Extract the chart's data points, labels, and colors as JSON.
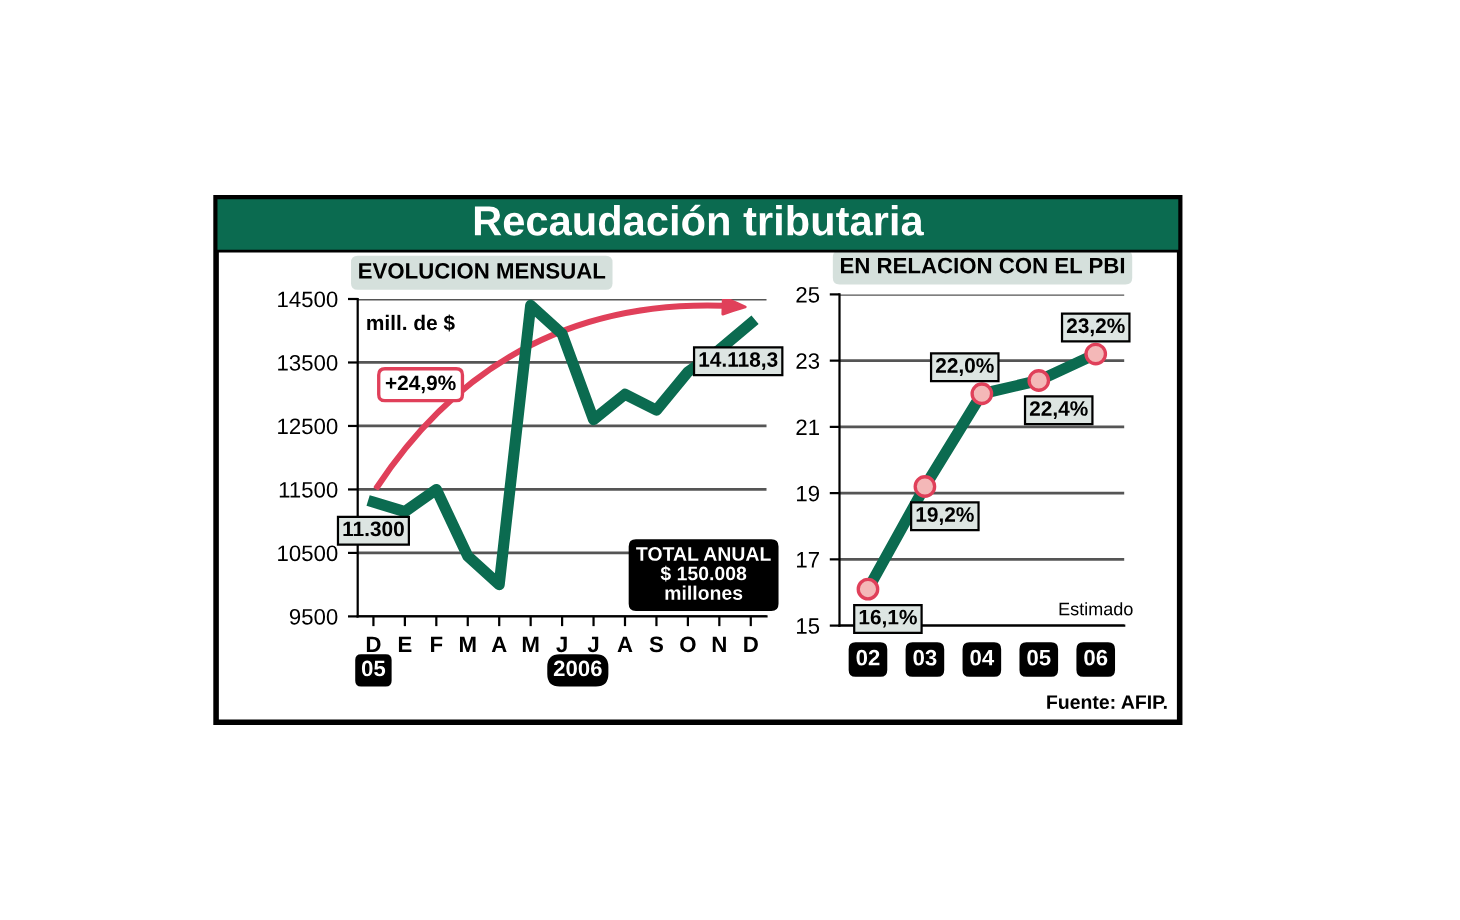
{
  "chart_data": [
    {
      "type": "line",
      "title": "Recaudación tributaria",
      "subtitle": "EVOLUCION MENSUAL",
      "ylabel": "mill. de $",
      "categories": [
        "D",
        "E",
        "F",
        "M",
        "A",
        "M",
        "J",
        "J",
        "A",
        "S",
        "O",
        "N",
        "D"
      ],
      "series": [
        {
          "color": "#0b6b50",
          "values": [
            11300,
            11150,
            11500,
            10450,
            10000,
            14400,
            13950,
            12600,
            13000,
            12750,
            13350,
            13700,
            14118.3
          ],
          "value_labels": [
            "11.300",
            null,
            null,
            null,
            null,
            null,
            null,
            null,
            null,
            null,
            null,
            null,
            "14.118,3"
          ]
        }
      ],
      "ylim": [
        9500,
        14500
      ],
      "yticks": [
        9500,
        10500,
        11500,
        12500,
        13500,
        14500
      ],
      "grid": "y",
      "marker": "none",
      "line_style": "solid",
      "legend": false,
      "annotations": [
        "+24,9%",
        "TOTAL ANUAL\n$ 150.008\nmillones",
        "05",
        "2006"
      ]
    },
    {
      "type": "line",
      "subtitle": "EN RELACION CON EL PBI",
      "categories": [
        "02",
        "03",
        "04",
        "05",
        "06"
      ],
      "series": [
        {
          "color": "#0b6b50",
          "values": [
            16.1,
            19.2,
            22.0,
            22.4,
            23.2
          ],
          "value_labels": [
            "16,1%",
            "19,2%",
            "22,0%",
            "22,4%",
            "23,2%"
          ]
        }
      ],
      "ylim": [
        15,
        25
      ],
      "yticks": [
        15,
        17,
        19,
        21,
        23,
        25
      ],
      "grid": "y",
      "marker": "circle",
      "line_style": "solid",
      "legend": false,
      "annotations": [
        "Estimado",
        "Fuente: AFIP."
      ]
    }
  ]
}
